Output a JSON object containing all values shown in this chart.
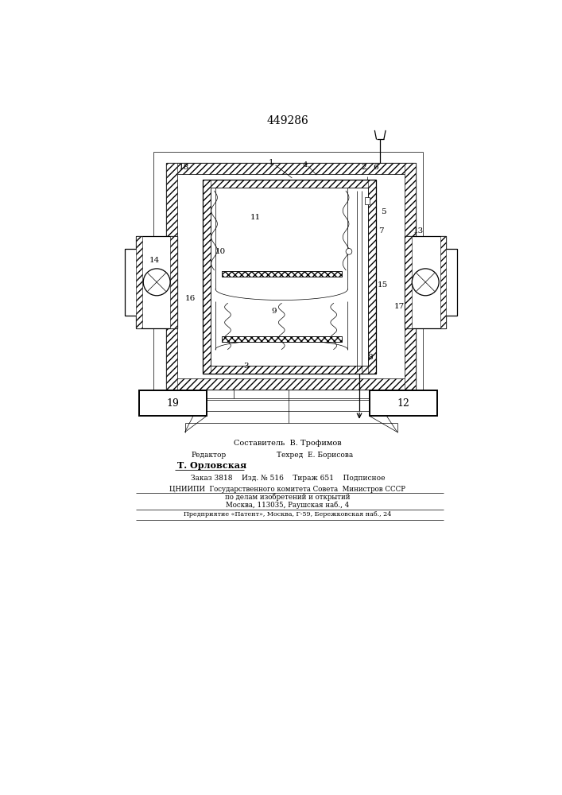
{
  "patent_number": "449286",
  "bg_color": "#ffffff",
  "footer": {
    "sostavitel": "Составитель  В. Трофимов",
    "redaktor_label": "Редактор",
    "tehred": "Техред  Е. Борисова",
    "redaktor_name": "Т. Орловская",
    "zakaz": "Заказ 3818    Изд. № 516    Тираж 651    Подписное",
    "org1": "ЦНИИПИ  Государственного комитета Совета  Министров СССР",
    "org2": "по делам изобретений и открытий",
    "org3": "Москва, 113035, Раушская наб., 4",
    "predpr": "Предприятие «Патент», Москва, Г-59, Бережковская наб., 24"
  }
}
